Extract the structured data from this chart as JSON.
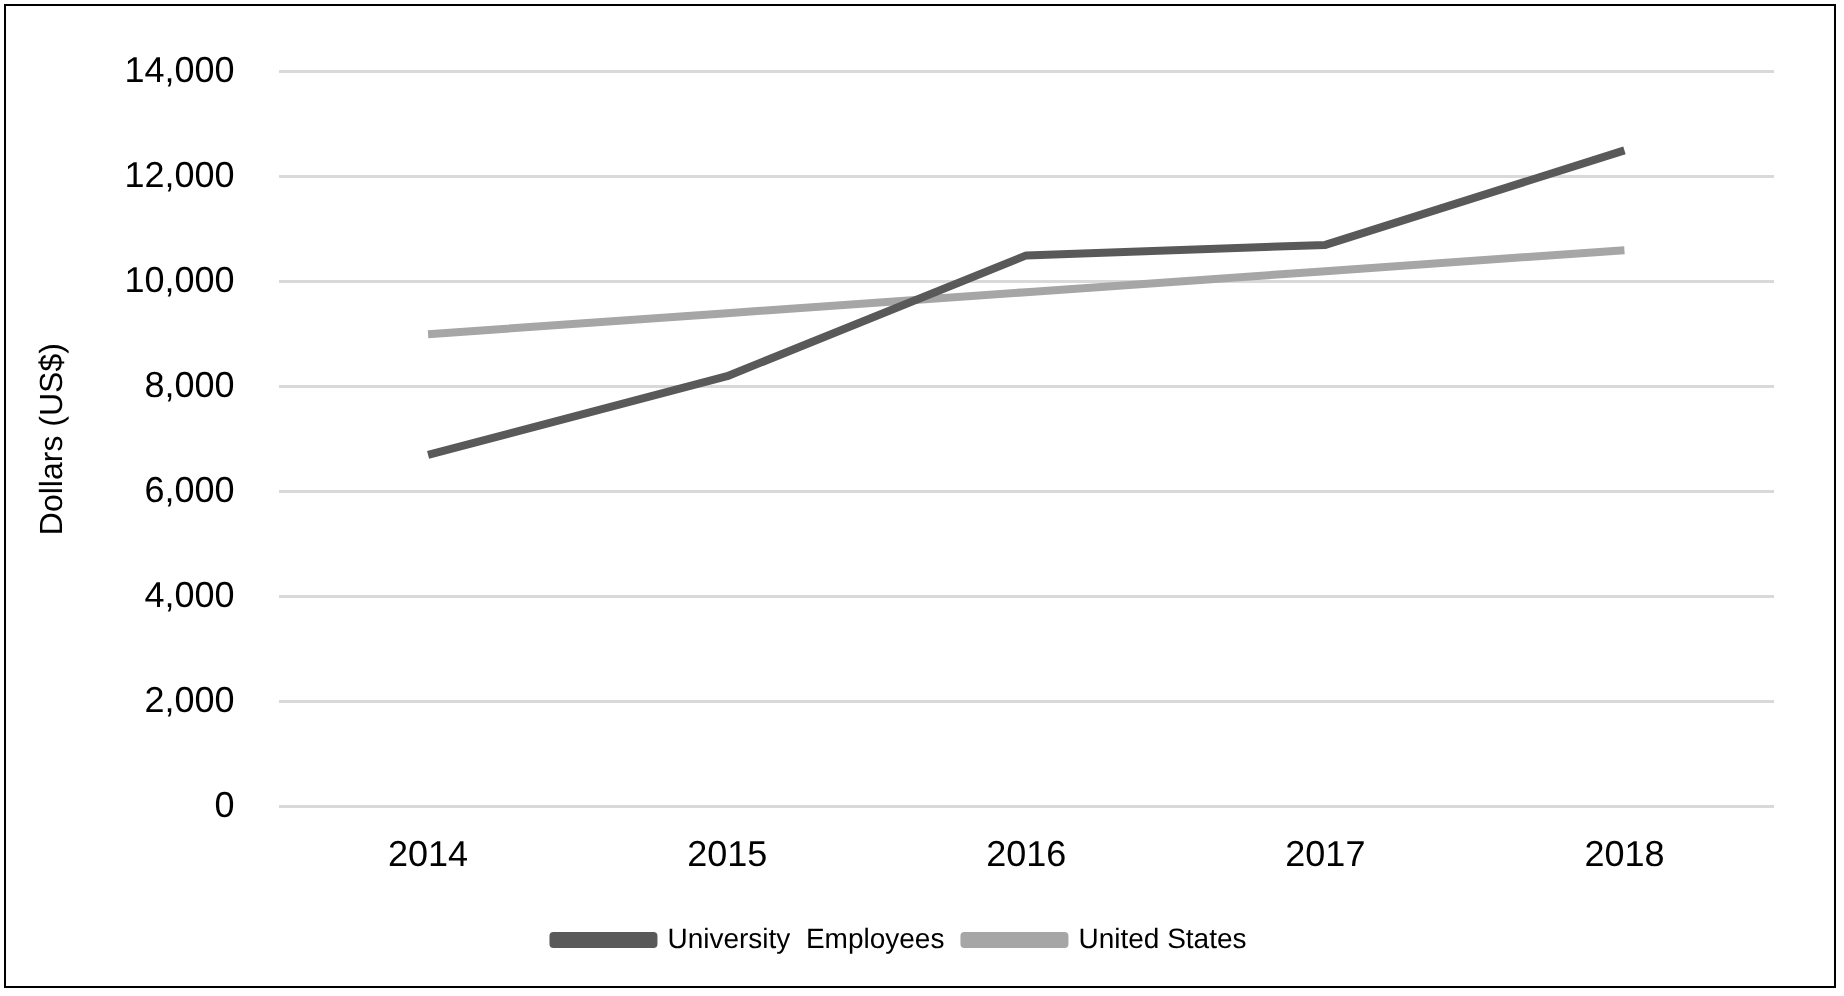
{
  "chart_data": {
    "type": "line",
    "ylabel": "Dollars (US$)",
    "categories": [
      "2014",
      "2015",
      "2016",
      "2017",
      "2018"
    ],
    "series": [
      {
        "name": "University  Employees",
        "color": "#595959",
        "values": [
          6700,
          8200,
          10500,
          10700,
          12500
        ]
      },
      {
        "name": "United States",
        "color": "#a6a6a6",
        "values": [
          9000,
          9400,
          9800,
          10200,
          10600
        ]
      }
    ],
    "ylim": [
      0,
      14000
    ],
    "yticks": [
      0,
      {
        "value": 2000,
        "label": "2,000"
      },
      {
        "value": 4000,
        "label": "4,000"
      },
      {
        "value": 6000,
        "label": "6,000"
      },
      {
        "value": 8000,
        "label": "8,000"
      },
      {
        "value": 10000,
        "label": "10,000"
      },
      {
        "value": 12000,
        "label": "12,000"
      },
      {
        "value": 14000,
        "label": "14,000"
      }
    ],
    "grid": "y",
    "legend": "bottom",
    "marker": "none",
    "line_style": "solid"
  }
}
